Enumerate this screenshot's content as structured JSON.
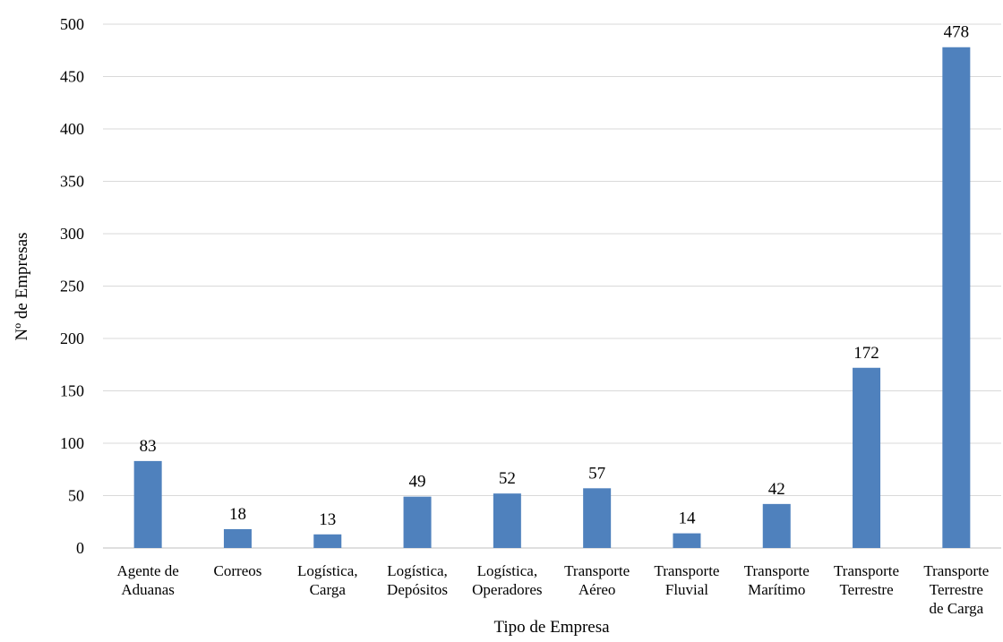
{
  "chart_data": {
    "type": "bar",
    "title": "",
    "xlabel": "Tipo de Empresa",
    "ylabel": "Nº de Empresas",
    "ylim": [
      0,
      500
    ],
    "ytick_step": 50,
    "grid": true,
    "legend": "none",
    "bar_color": "#4f81bd",
    "categories": [
      [
        "Agente de",
        "Aduanas"
      ],
      [
        "Correos"
      ],
      [
        "Logística,",
        "Carga"
      ],
      [
        "Logística,",
        "Depósitos"
      ],
      [
        "Logística,",
        "Operadores"
      ],
      [
        "Transporte",
        "Aéreo"
      ],
      [
        "Transporte",
        "Fluvial"
      ],
      [
        "Transporte",
        "Marítimo"
      ],
      [
        "Transporte",
        "Terrestre"
      ],
      [
        "Transporte",
        "Terrestre",
        "de Carga"
      ]
    ],
    "values": [
      83,
      18,
      13,
      49,
      52,
      57,
      14,
      42,
      172,
      478
    ]
  }
}
